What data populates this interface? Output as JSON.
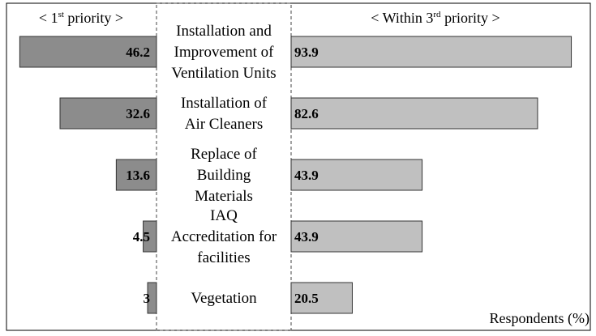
{
  "chart_data": {
    "type": "bar",
    "layout": "butterfly",
    "categories": [
      [
        "Installation and",
        "Improvement of",
        "Ventilation Units"
      ],
      [
        "Installation of",
        "Air Cleaners"
      ],
      [
        "Replace of",
        "Building",
        "Materials"
      ],
      [
        "IAQ",
        "Accreditation for",
        "facilities"
      ],
      [
        "Vegetation"
      ]
    ],
    "series": [
      {
        "name_parts": [
          "< 1",
          "st",
          " priority >"
        ],
        "values": [
          46.2,
          32.6,
          13.6,
          4.5,
          3
        ],
        "value_labels": [
          "46.2",
          "32.6",
          "13.6",
          "4.5",
          "3"
        ],
        "color": "#8c8c8c",
        "direction": "left"
      },
      {
        "name_parts": [
          "< Within 3",
          "rd",
          " priority >"
        ],
        "values": [
          93.9,
          82.6,
          43.9,
          43.9,
          20.5
        ],
        "value_labels": [
          "93.9",
          "82.6",
          "43.9",
          "43.9",
          "20.5"
        ],
        "color": "#c0c0c0",
        "direction": "right"
      }
    ],
    "unit_label": "Respondents (%)",
    "grid": false,
    "legend": "headers above each side"
  }
}
